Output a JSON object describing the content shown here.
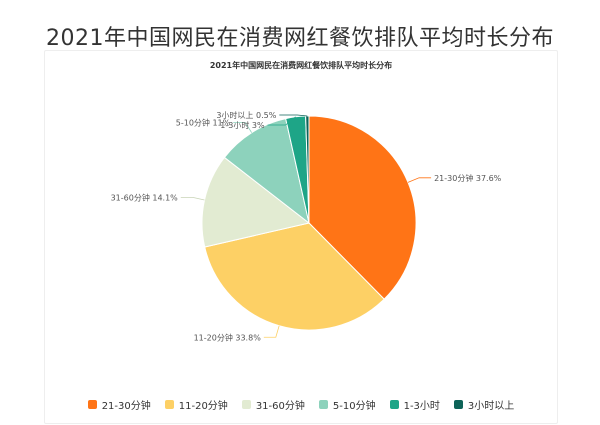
{
  "page": {
    "title": "2021年中国网民在消费网红餐饮排队平均时长分布"
  },
  "chart_data": {
    "type": "pie",
    "title": "2021年中国网民在消费网红餐饮排队平均时长分布",
    "categories": [
      "21-30分钟",
      "11-20分钟",
      "31-60分钟",
      "5-10分钟",
      "1-3小时",
      "3小时以上"
    ],
    "values": [
      37.6,
      33.8,
      14.1,
      11,
      3,
      0.5
    ],
    "labels": [
      "21-30分钟 37.6%",
      "11-20分钟 33.8%",
      "31-60分钟 14.1%",
      "5-10分钟 11%",
      "1-3小时 3%",
      "3小时以上 0.5%"
    ],
    "colors": [
      "#ff7416",
      "#fdd065",
      "#e2ebd2",
      "#8dd2bc",
      "#1ea587",
      "#0d6358"
    ],
    "unit": "%",
    "legend_position": "bottom"
  }
}
